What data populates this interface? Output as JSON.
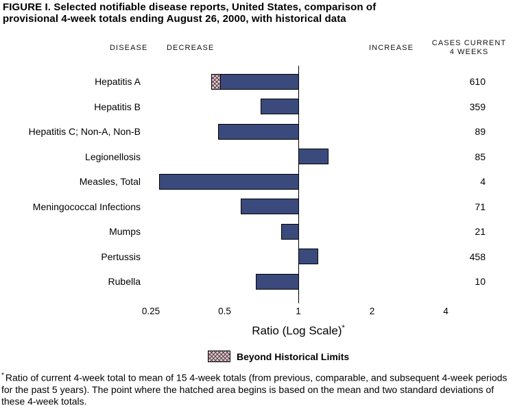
{
  "figure": {
    "title_line1": "FIGURE I.  Selected notifiable disease reports, United States, comparison of",
    "title_line2": "provisional 4-week totals ending August 26, 2000, with historical data"
  },
  "headers": {
    "disease": "DISEASE",
    "decrease": "DECREASE",
    "increase": "INCREASE",
    "cases_line1": "CASES CURRENT",
    "cases_line2": "4 WEEKS"
  },
  "chart_data": {
    "type": "bar",
    "orientation": "horizontal",
    "scale": "log2",
    "baseline": 1,
    "xlim": [
      0.25,
      4
    ],
    "x_ticks": [
      "0.25",
      "0.5",
      "1",
      "2",
      "4"
    ],
    "xlabel": "Ratio (Log Scale)",
    "xlabel_marker": "*",
    "bar_color": "#3b4a7c",
    "hatch_color": "#e9c4ce",
    "legend": "Beyond Historical Limits",
    "rows": [
      {
        "disease": "Hepatitis A",
        "cases_current_4_weeks": 610,
        "ratio": 0.44,
        "hatched_beyond": 0.48
      },
      {
        "disease": "Hepatitis B",
        "cases_current_4_weeks": 359,
        "ratio": 0.7
      },
      {
        "disease": "Hepatitis C; Non-A, Non-B",
        "cases_current_4_weeks": 89,
        "ratio": 0.47
      },
      {
        "disease": "Legionellosis",
        "cases_current_4_weeks": 85,
        "ratio": 1.32
      },
      {
        "disease": "Measles, Total",
        "cases_current_4_weeks": 4,
        "ratio": 0.27
      },
      {
        "disease": "Meningococcal Infections",
        "cases_current_4_weeks": 71,
        "ratio": 0.58
      },
      {
        "disease": "Mumps",
        "cases_current_4_weeks": 21,
        "ratio": 0.85
      },
      {
        "disease": "Pertussis",
        "cases_current_4_weeks": 458,
        "ratio": 1.2
      },
      {
        "disease": "Rubella",
        "cases_current_4_weeks": 10,
        "ratio": 0.67
      }
    ]
  },
  "footnote": {
    "marker": "*",
    "text": "Ratio of current 4-week total to mean of 15 4-week totals (from previous, comparable, and subsequent 4-week periods for the past 5 years). The point where the hatched area begins is based on the mean and two standard deviations of these 4-week totals."
  }
}
